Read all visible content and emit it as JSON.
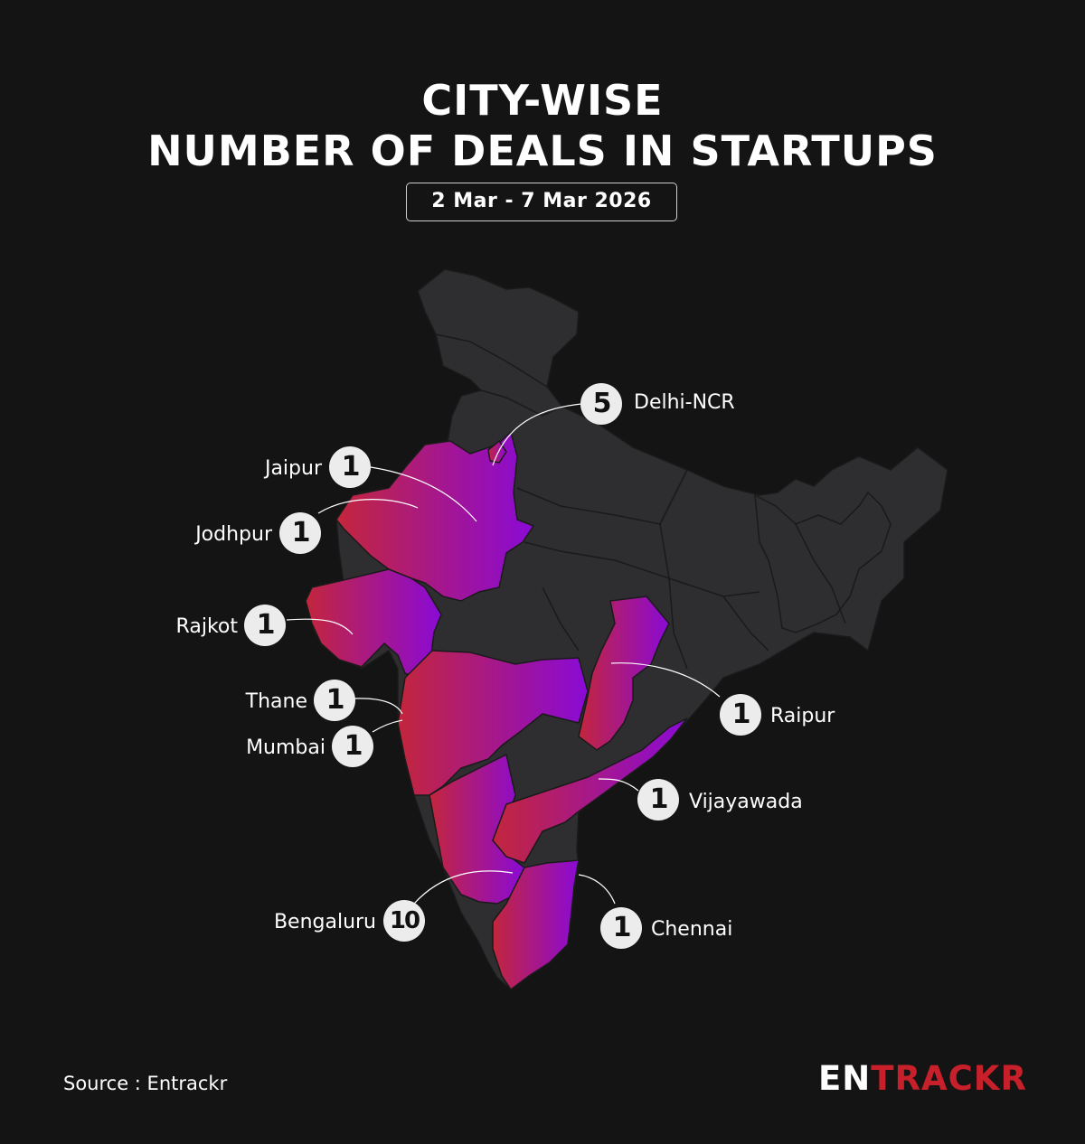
{
  "header": {
    "title_line1": "CITY-WISE",
    "title_line2": "NUMBER OF DEALS IN STARTUPS",
    "date_range": "2 Mar - 7 Mar 2026"
  },
  "colors": {
    "background": "#141414",
    "base_region": "#2e2e30",
    "highlight_start": "#c3263c",
    "highlight_end": "#8a0ad6",
    "badge": "#ececec",
    "brand_accent": "#c8202a"
  },
  "map": {
    "region": "India",
    "cities": [
      {
        "name": "Delhi-NCR",
        "deals": "5"
      },
      {
        "name": "Jaipur",
        "deals": "1"
      },
      {
        "name": "Jodhpur",
        "deals": "1"
      },
      {
        "name": "Rajkot",
        "deals": "1"
      },
      {
        "name": "Thane",
        "deals": "1"
      },
      {
        "name": "Mumbai",
        "deals": "1"
      },
      {
        "name": "Raipur",
        "deals": "1"
      },
      {
        "name": "Vijayawada",
        "deals": "1"
      },
      {
        "name": "Bengaluru",
        "deals": "10"
      },
      {
        "name": "Chennai",
        "deals": "1"
      }
    ]
  },
  "footer": {
    "source": "Source : Entrackr",
    "logo_part1": "EN",
    "logo_part2": "TRACKR"
  }
}
